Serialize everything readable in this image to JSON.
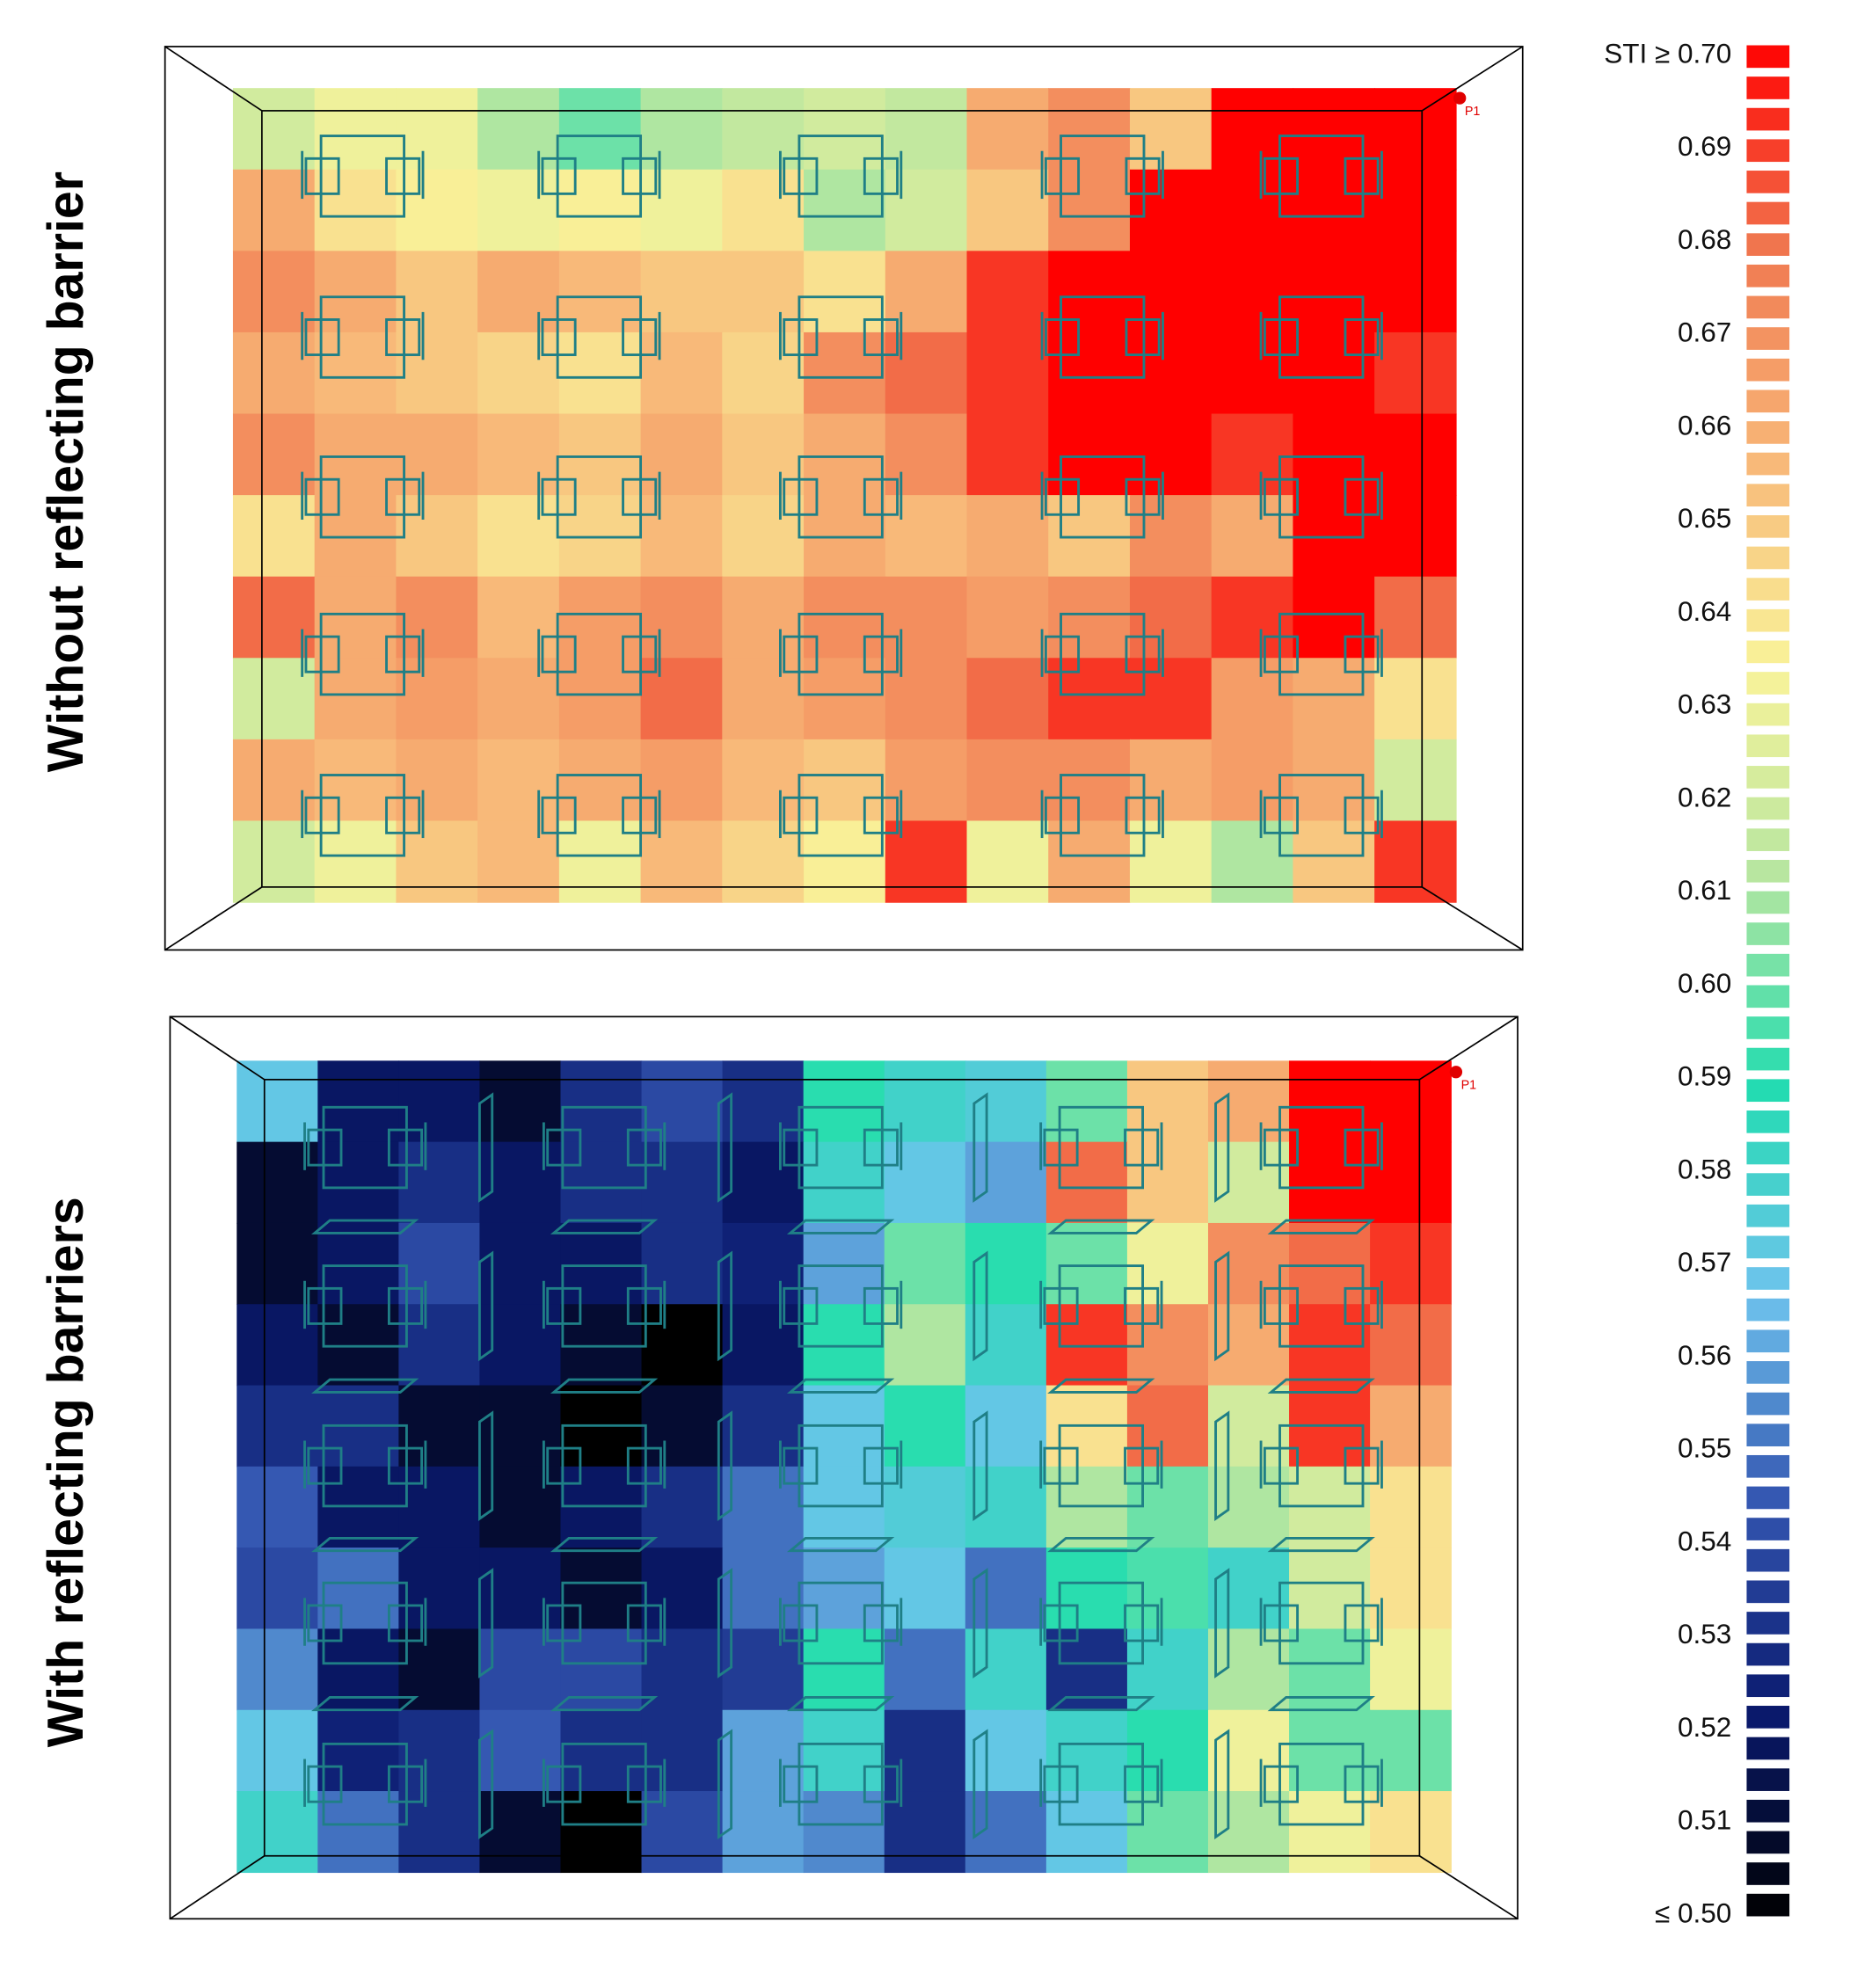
{
  "chart_data": [
    {
      "type": "heatmap",
      "title": "Without reflecting barrier",
      "annotation": "P1",
      "values": [
        [
          0.62,
          0.63,
          0.63,
          0.61,
          0.6,
          0.61,
          0.615,
          0.62,
          0.615,
          0.66,
          0.67,
          0.65,
          0.7,
          0.7,
          0.7
        ],
        [
          0.66,
          0.64,
          0.635,
          0.63,
          0.635,
          0.63,
          0.64,
          0.61,
          0.62,
          0.65,
          0.67,
          0.7,
          0.7,
          0.7,
          0.7
        ],
        [
          0.67,
          0.66,
          0.65,
          0.66,
          0.655,
          0.65,
          0.65,
          0.64,
          0.66,
          0.69,
          0.7,
          0.7,
          0.7,
          0.7,
          0.7
        ],
        [
          0.66,
          0.655,
          0.65,
          0.645,
          0.64,
          0.655,
          0.645,
          0.67,
          0.68,
          0.69,
          0.7,
          0.7,
          0.7,
          0.7,
          0.69
        ],
        [
          0.67,
          0.66,
          0.66,
          0.655,
          0.65,
          0.66,
          0.65,
          0.66,
          0.67,
          0.69,
          0.7,
          0.7,
          0.69,
          0.7,
          0.7
        ],
        [
          0.64,
          0.66,
          0.65,
          0.64,
          0.645,
          0.655,
          0.645,
          0.66,
          0.655,
          0.66,
          0.65,
          0.67,
          0.66,
          0.7,
          0.7
        ],
        [
          0.68,
          0.66,
          0.67,
          0.655,
          0.665,
          0.67,
          0.66,
          0.67,
          0.67,
          0.665,
          0.67,
          0.68,
          0.69,
          0.7,
          0.68
        ],
        [
          0.62,
          0.66,
          0.665,
          0.66,
          0.665,
          0.68,
          0.66,
          0.665,
          0.67,
          0.68,
          0.69,
          0.69,
          0.665,
          0.66,
          0.64
        ],
        [
          0.66,
          0.655,
          0.66,
          0.655,
          0.66,
          0.665,
          0.655,
          0.65,
          0.665,
          0.67,
          0.67,
          0.66,
          0.665,
          0.66,
          0.62
        ],
        [
          0.62,
          0.63,
          0.65,
          0.655,
          0.63,
          0.655,
          0.645,
          0.635,
          0.69,
          0.63,
          0.66,
          0.63,
          0.61,
          0.65,
          0.69
        ]
      ]
    },
    {
      "type": "heatmap",
      "title": "With reflecting barriers",
      "annotation": "P1",
      "values": [
        [
          0.57,
          0.52,
          0.52,
          0.51,
          0.53,
          0.54,
          0.53,
          0.59,
          0.58,
          0.575,
          0.6,
          0.65,
          0.66,
          0.7,
          0.7
        ],
        [
          0.51,
          0.52,
          0.53,
          0.52,
          0.53,
          0.53,
          0.52,
          0.58,
          0.57,
          0.56,
          0.68,
          0.65,
          0.62,
          0.7,
          0.7
        ],
        [
          0.51,
          0.52,
          0.54,
          0.52,
          0.52,
          0.53,
          0.525,
          0.56,
          0.6,
          0.59,
          0.6,
          0.63,
          0.67,
          0.68,
          0.69
        ],
        [
          0.52,
          0.51,
          0.53,
          0.52,
          0.51,
          0.5,
          0.52,
          0.59,
          0.61,
          0.58,
          0.69,
          0.67,
          0.66,
          0.69,
          0.68
        ],
        [
          0.53,
          0.53,
          0.51,
          0.51,
          0.5,
          0.51,
          0.53,
          0.57,
          0.59,
          0.57,
          0.64,
          0.68,
          0.62,
          0.69,
          0.66
        ],
        [
          0.545,
          0.52,
          0.52,
          0.51,
          0.52,
          0.53,
          0.55,
          0.57,
          0.575,
          0.58,
          0.61,
          0.6,
          0.61,
          0.62,
          0.64
        ],
        [
          0.54,
          0.55,
          0.52,
          0.52,
          0.51,
          0.52,
          0.55,
          0.56,
          0.57,
          0.55,
          0.59,
          0.595,
          0.58,
          0.62,
          0.64
        ],
        [
          0.555,
          0.52,
          0.51,
          0.54,
          0.54,
          0.53,
          0.535,
          0.59,
          0.55,
          0.58,
          0.53,
          0.58,
          0.61,
          0.6,
          0.63
        ],
        [
          0.57,
          0.525,
          0.53,
          0.545,
          0.53,
          0.53,
          0.56,
          0.58,
          0.53,
          0.57,
          0.58,
          0.59,
          0.63,
          0.6,
          0.6
        ],
        [
          0.58,
          0.55,
          0.53,
          0.51,
          0.5,
          0.54,
          0.56,
          0.555,
          0.53,
          0.55,
          0.57,
          0.6,
          0.61,
          0.63,
          0.64
        ]
      ]
    }
  ],
  "colorbar": {
    "zlim": [
      0.5,
      0.7
    ],
    "colors": [
      "#000000",
      "#0a1a6e",
      "#3355b0",
      "#6fc3ee",
      "#22dcb0",
      "#b6e6a0",
      "#f9f39a",
      "#f8b878",
      "#f07850",
      "#ff0000"
    ],
    "ticks": [
      {
        "value": 0.7,
        "label": "STI ≥ 0.70"
      },
      0.69,
      0.68,
      0.67,
      0.66,
      0.65,
      0.64,
      0.63,
      0.62,
      0.61,
      {
        "value": 0.6,
        "label": "0.60"
      },
      0.59,
      0.58,
      0.57,
      0.56,
      0.55,
      0.54,
      0.53,
      0.52,
      0.51,
      {
        "value": 0.5,
        "label": "≤ 0.50"
      }
    ]
  }
}
